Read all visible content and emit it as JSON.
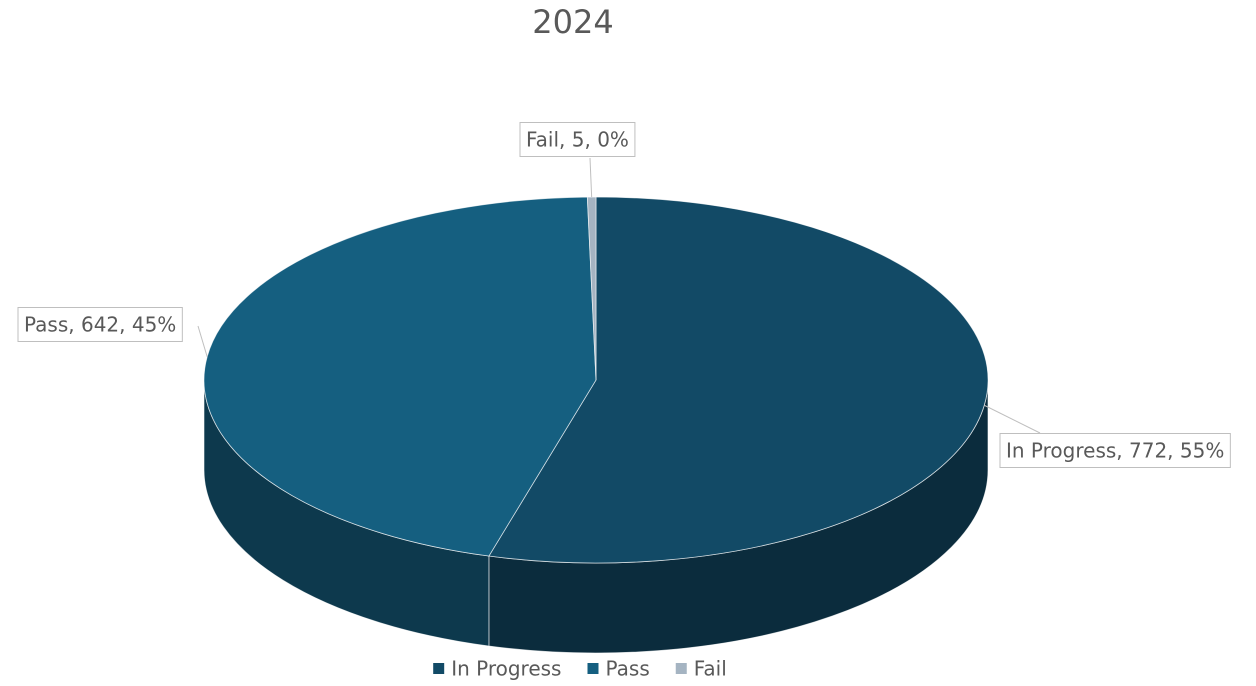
{
  "chart_data": {
    "type": "pie",
    "title": "2024",
    "categories": [
      "In Progress",
      "Pass",
      "Fail"
    ],
    "values": [
      772,
      642,
      5
    ],
    "value_labels": [
      "In Progress, 772, 55%",
      "Pass, 642, 45%",
      "Fail, 5, 0%"
    ],
    "colors": [
      "#124a66",
      "#155f80",
      "#a5b4c2"
    ],
    "legend": "bottom"
  }
}
